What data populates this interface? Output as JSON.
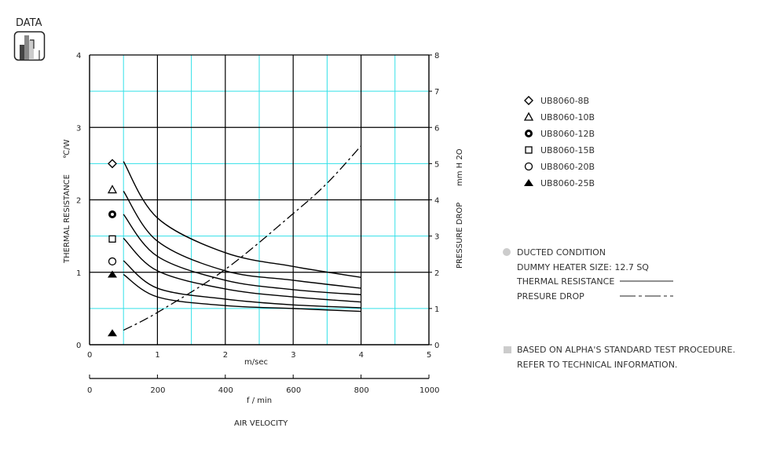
{
  "badge": {
    "label": "DATA",
    "icon": "bar-chart-icon"
  },
  "chart_data": {
    "type": "line",
    "xlabel": "AIR VELOCITY",
    "x_unit_primary": "m/sec",
    "x_unit_secondary": "f / min",
    "xlim": [
      0,
      5
    ],
    "x_ticks": [
      "0",
      "1",
      "2",
      "3",
      "4",
      "5"
    ],
    "x2lim": [
      0,
      1000
    ],
    "x2_ticks": [
      "0",
      "200",
      "400",
      "600",
      "800",
      "1000"
    ],
    "ylabel_left": "THERMAL RESISTANCE",
    "ylabel_left_unit": "℃/W",
    "ylim_left": [
      0,
      4
    ],
    "y_left_ticks": [
      "0",
      "1",
      "2",
      "3",
      "4"
    ],
    "ylabel_right": "PRESSURE DROP",
    "ylabel_right_unit": "mm H 2O",
    "ylim_right": [
      0,
      8
    ],
    "y_right_ticks": [
      "0",
      "1",
      "2",
      "3",
      "4",
      "5",
      "6",
      "7",
      "8"
    ],
    "grid": true,
    "legend_position": "right",
    "x": [
      0.5,
      1,
      2,
      3,
      4
    ],
    "series": [
      {
        "name": "UB8060-8B",
        "marker": "diamond-open",
        "marker_value": 2.5,
        "axis": "left",
        "values": [
          2.53,
          1.75,
          1.27,
          1.08,
          0.93
        ]
      },
      {
        "name": "UB8060-10B",
        "marker": "triangle-open",
        "marker_value": 2.14,
        "axis": "left",
        "values": [
          2.12,
          1.43,
          1.02,
          0.89,
          0.78
        ]
      },
      {
        "name": "UB8060-12B",
        "marker": "bullseye",
        "marker_value": 1.8,
        "axis": "left",
        "values": [
          1.8,
          1.22,
          0.89,
          0.76,
          0.69
        ]
      },
      {
        "name": "UB8060-15B",
        "marker": "square-open",
        "marker_value": 1.46,
        "axis": "left",
        "values": [
          1.47,
          1.02,
          0.77,
          0.66,
          0.59
        ]
      },
      {
        "name": "UB8060-20B",
        "marker": "circle-open",
        "marker_value": 1.15,
        "axis": "left",
        "values": [
          1.16,
          0.78,
          0.63,
          0.55,
          0.51
        ]
      },
      {
        "name": "UB8060-25B",
        "marker": "triangle-filled",
        "marker_value": 0.97,
        "axis": "left",
        "values": [
          0.97,
          0.66,
          0.54,
          0.5,
          0.46
        ]
      }
    ],
    "pressure_series": {
      "marker": "triangle-filled",
      "marker_value": 0.32,
      "axis": "right",
      "style": "dash-dot",
      "x": [
        0.5,
        1,
        2,
        3,
        3.5,
        4
      ],
      "values": [
        0.4,
        0.89,
        2.08,
        3.62,
        4.46,
        5.49
      ]
    },
    "colors": {
      "major_grid": "#000000",
      "minor_grid": "#33e0e8",
      "line": "#000000"
    }
  },
  "notes": {
    "condition": "DUCTED CONDITION",
    "heater": "DUMMY HEATER SIZE: 12.7 SQ",
    "thermal_label": "THERMAL RESISTANCE",
    "pressure_label": "PRESURE DROP",
    "procedure": "BASED ON ALPHA'S STANDARD TEST PROCEDURE.",
    "refer": "REFER TO TECHNICAL INFORMATION."
  }
}
